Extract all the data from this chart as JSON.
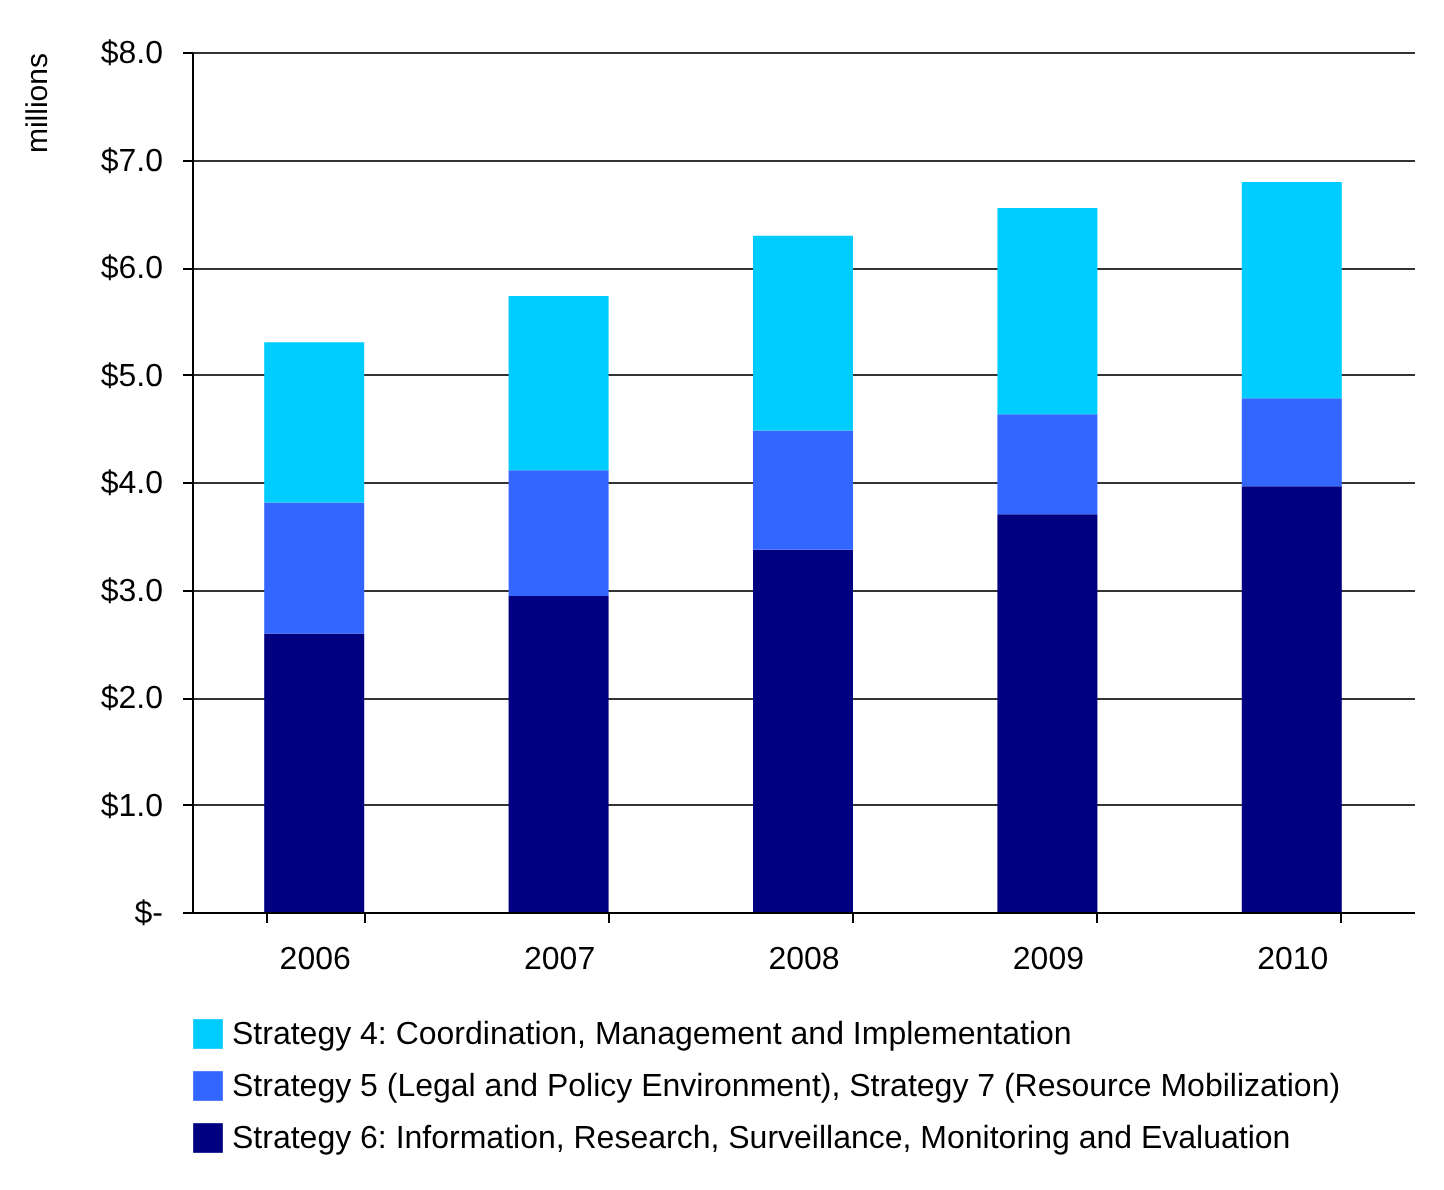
{
  "chart_data": {
    "type": "bar",
    "stacked": true,
    "ylabel": "millions",
    "categories": [
      "2006",
      "2007",
      "2008",
      "2009",
      "2010"
    ],
    "series": [
      {
        "name": "Strategy 6: Information, Research, Surveillance, Monitoring and Evaluation",
        "color": "#000080",
        "values": [
          2.59,
          2.94,
          3.37,
          3.7,
          3.96
        ]
      },
      {
        "name": "Strategy 5 (Legal and Policy Environment), Strategy 7 (Resource Mobilization)",
        "color": "#3366ff",
        "values": [
          1.22,
          1.17,
          1.11,
          0.93,
          0.82
        ]
      },
      {
        "name": "Strategy 4: Coordination, Management and Implementation",
        "color": "#00ccff",
        "values": [
          1.49,
          1.62,
          1.81,
          1.92,
          2.01
        ]
      }
    ],
    "ylim": [
      0,
      8
    ],
    "yticks": [
      {
        "value": 0,
        "label": "$-"
      },
      {
        "value": 1,
        "label": "$1.0"
      },
      {
        "value": 2,
        "label": "$2.0"
      },
      {
        "value": 3,
        "label": "$3.0"
      },
      {
        "value": 4,
        "label": "$4.0"
      },
      {
        "value": 5,
        "label": "$5.0"
      },
      {
        "value": 6,
        "label": "$6.0"
      },
      {
        "value": 7,
        "label": "$7.0"
      },
      {
        "value": 8,
        "label": "$8.0"
      }
    ],
    "grid": "y",
    "legend": "bottom"
  }
}
